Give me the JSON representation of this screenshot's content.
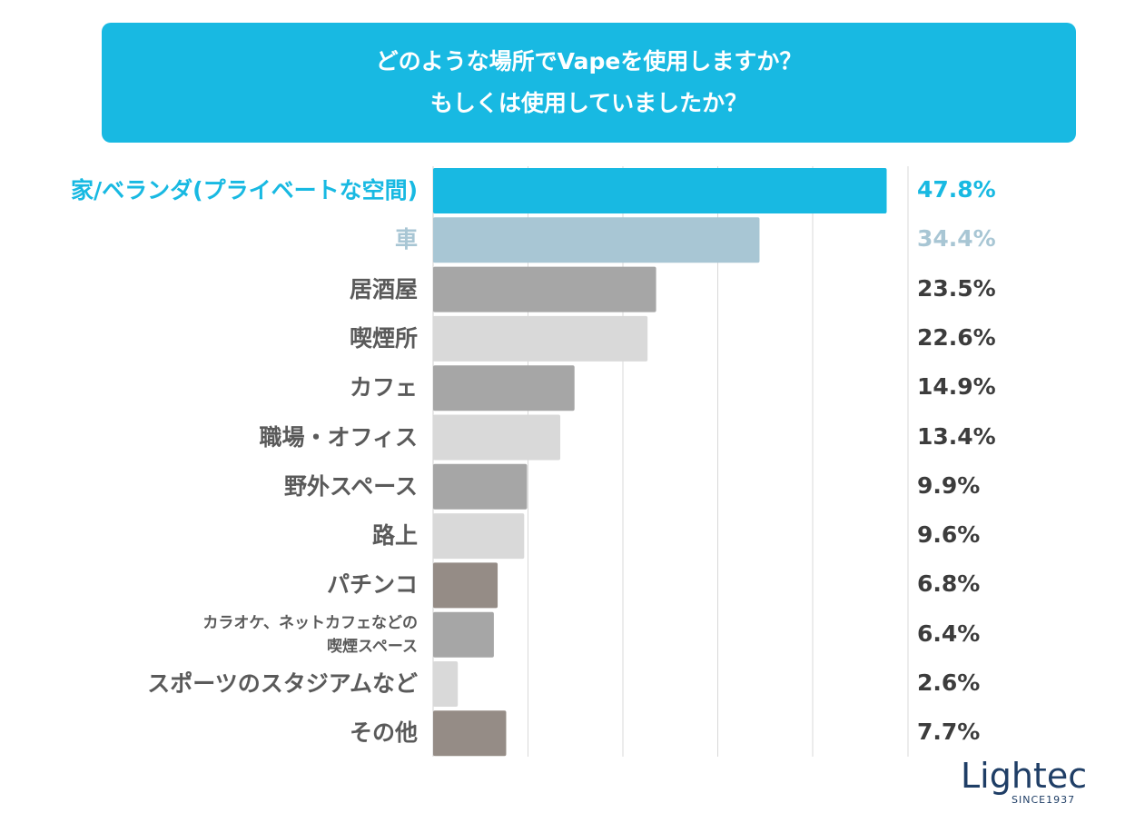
{
  "title": {
    "line1": "どのような場所でVapeを使用しますか？",
    "line2": "もしくは使用していましたか？"
  },
  "chart_data": {
    "type": "bar",
    "orientation": "horizontal",
    "title": "どのような場所でVapeを使用しますか？ もしくは使用していましたか？",
    "categories": [
      "家/ベランダ(プライベートな空間)",
      "車",
      "居酒屋",
      "喫煙所",
      "カフェ",
      "職場・オフィス",
      "野外スペース",
      "路上",
      "パチンコ",
      "カラオケ、ネットカフェなどの喫煙スペース",
      "スポーツのスタジアムなど",
      "その他"
    ],
    "label_lines": [
      [
        "家/ベランダ(プライベートな空間)"
      ],
      [
        "車"
      ],
      [
        "居酒屋"
      ],
      [
        "喫煙所"
      ],
      [
        "カフェ"
      ],
      [
        "職場・オフィス"
      ],
      [
        "野外スペース"
      ],
      [
        "路上"
      ],
      [
        "パチンコ"
      ],
      [
        "カラオケ、ネットカフェなどの",
        "喫煙スペース"
      ],
      [
        "スポーツのスタジアムなど"
      ],
      [
        "その他"
      ]
    ],
    "values": [
      47.8,
      34.4,
      23.5,
      22.6,
      14.9,
      13.4,
      9.9,
      9.6,
      6.8,
      6.4,
      2.6,
      7.7
    ],
    "value_labels": [
      "47.8%",
      "34.4%",
      "23.5%",
      "22.6%",
      "14.9%",
      "13.4%",
      "9.9%",
      "9.6%",
      "6.8%",
      "6.4%",
      "2.6%",
      "7.7%"
    ],
    "bar_colors": [
      "#18b9e2",
      "#a8c6d4",
      "#a6a6a6",
      "#d9d9d9",
      "#a6a6a6",
      "#d9d9d9",
      "#a6a6a6",
      "#d9d9d9",
      "#958c86",
      "#a6a6a6",
      "#d9d9d9",
      "#958c86"
    ],
    "label_colors": [
      "#18b9e2",
      "#a8c6d4",
      "#5a5a5a",
      "#5a5a5a",
      "#5a5a5a",
      "#5a5a5a",
      "#5a5a5a",
      "#5a5a5a",
      "#5a5a5a",
      "#5a5a5a",
      "#5a5a5a",
      "#5a5a5a"
    ],
    "value_colors": [
      "#18b9e2",
      "#a8c6d4",
      "#3c3c3c",
      "#3c3c3c",
      "#3c3c3c",
      "#3c3c3c",
      "#3c3c3c",
      "#3c3c3c",
      "#3c3c3c",
      "#3c3c3c",
      "#3c3c3c",
      "#3c3c3c"
    ],
    "xlim": [
      0,
      50
    ],
    "grid": true,
    "gridline_values": [
      10,
      20,
      30,
      40
    ]
  },
  "logo": {
    "name": "Lightec",
    "tagline": "SINCE1937"
  }
}
